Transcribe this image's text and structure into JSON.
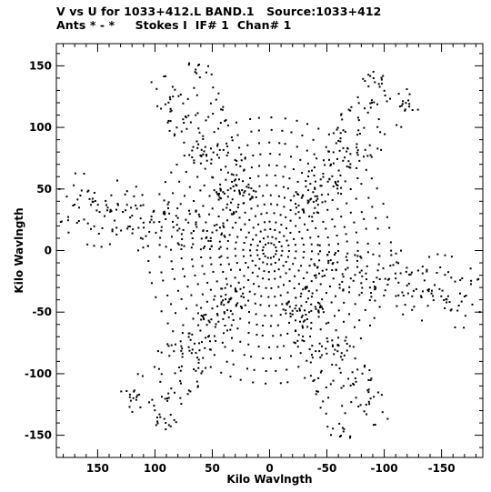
{
  "chart_data": {
    "type": "scatter",
    "title": "V vs U for 1033+412.L BAND.1   Source:1033+412",
    "subtitle": "Ants * - *     Stokes I  IF# 1  Chan# 1",
    "xlabel": "Kilo Wavlngth",
    "ylabel": "Kilo Wavlngth",
    "xlim": [
      186,
      -186
    ],
    "ylim": [
      -168,
      168
    ],
    "x_reversed": true,
    "xticks": [
      150,
      100,
      50,
      0,
      -50,
      -100,
      -150
    ],
    "yticks": [
      150,
      100,
      50,
      0,
      -50,
      -100,
      -150
    ],
    "xtick_labels": [
      "150",
      "100",
      "50",
      "0",
      "-50",
      "-100",
      "-150"
    ],
    "ytick_labels": [
      "150",
      "100",
      "50",
      "0",
      "-50",
      "-100",
      "-150"
    ],
    "grid": false,
    "marker_color": "#000000",
    "description_of_distribution": "uv-coverage: concentric elliptical tracks near centre plus six radial arms, point-symmetric about origin",
    "series": [
      {
        "tracks": [
          {
            "r": 6,
            "n": 14
          },
          {
            "r": 11,
            "n": 18
          },
          {
            "r": 17,
            "n": 24
          },
          {
            "r": 23,
            "n": 28
          },
          {
            "r": 30,
            "n": 34
          },
          {
            "r": 37,
            "n": 40
          },
          {
            "r": 44,
            "n": 44
          },
          {
            "r": 52,
            "n": 50
          },
          {
            "r": 60,
            "n": 54
          },
          {
            "r": 68,
            "n": 58
          },
          {
            "r": 77,
            "n": 60
          },
          {
            "r": 86,
            "n": 62
          },
          {
            "r": 96,
            "n": 64
          },
          {
            "r": 106,
            "n": 64
          }
        ],
        "arms": [
          {
            "angle_deg": 130,
            "length": 180,
            "width": 40
          },
          {
            "angle_deg": 60,
            "length": 160,
            "width": 45
          },
          {
            "angle_deg": 15,
            "length": 185,
            "width": 40
          },
          {
            "angle_deg": -50,
            "length": 175,
            "width": 42
          },
          {
            "angle_deg": -120,
            "length": 170,
            "width": 45
          },
          {
            "angle_deg": 190,
            "length": 190,
            "width": 40
          }
        ]
      }
    ]
  }
}
